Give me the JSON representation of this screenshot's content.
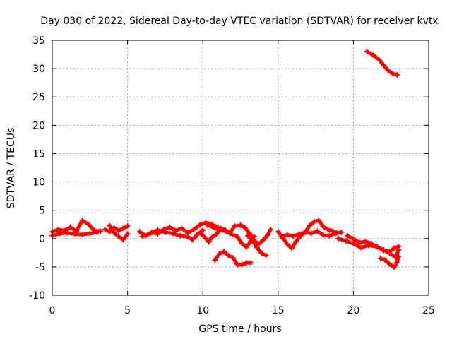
{
  "chart_data": {
    "type": "scatter",
    "title": "Day 030 of 2022, Sidereal Day-to-day VTEC variation (SDTVAR) for receiver kvtx",
    "xlabel": "GPS time / hours",
    "ylabel": "SDTVAR / TECUs",
    "xlim": [
      0,
      25
    ],
    "ylim": [
      -10,
      35
    ],
    "xticks": [
      "0",
      "5",
      "10",
      "15",
      "20",
      "25"
    ],
    "yticks": [
      "-10",
      "-5",
      "0",
      "5",
      "10",
      "15",
      "20",
      "25",
      "30",
      "35"
    ],
    "grid": true,
    "color": "#ff0000",
    "series": [
      {
        "name": "s1",
        "points": [
          [
            0.0,
            1.2
          ],
          [
            0.4,
            1.6
          ],
          [
            0.8,
            1.4
          ],
          [
            1.2,
            2.0
          ],
          [
            1.6,
            1.3
          ],
          [
            2.0,
            3.2
          ],
          [
            2.4,
            2.5
          ],
          [
            2.8,
            1.4
          ],
          [
            3.2,
            1.3
          ]
        ]
      },
      {
        "name": "s2",
        "points": [
          [
            0.0,
            0.5
          ],
          [
            0.5,
            0.9
          ],
          [
            1.0,
            1.0
          ],
          [
            1.5,
            0.8
          ],
          [
            2.0,
            0.7
          ],
          [
            2.5,
            0.9
          ],
          [
            3.0,
            1.1
          ]
        ]
      },
      {
        "name": "s3",
        "points": [
          [
            3.5,
            1.6
          ],
          [
            3.8,
            1.2
          ],
          [
            4.1,
            1.9
          ],
          [
            4.4,
            1.4
          ],
          [
            4.7,
            1.8
          ],
          [
            5.0,
            2.2
          ]
        ]
      },
      {
        "name": "s4",
        "points": [
          [
            3.8,
            2.3
          ],
          [
            4.1,
            1.0
          ],
          [
            4.4,
            0.4
          ],
          [
            4.7,
            -0.2
          ],
          [
            5.0,
            0.8
          ]
        ]
      },
      {
        "name": "s5",
        "points": [
          [
            5.8,
            1.2
          ],
          [
            6.2,
            0.5
          ],
          [
            6.6,
            1.1
          ],
          [
            7.0,
            0.8
          ],
          [
            7.4,
            1.6
          ],
          [
            7.8,
            2.0
          ],
          [
            8.2,
            1.4
          ],
          [
            8.6,
            1.8
          ],
          [
            9.0,
            1.0
          ],
          [
            9.4,
            1.6
          ],
          [
            9.8,
            2.4
          ],
          [
            10.2,
            2.8
          ],
          [
            10.6,
            2.5
          ],
          [
            11.0,
            2.0
          ]
        ]
      },
      {
        "name": "s6",
        "points": [
          [
            6.0,
            0.4
          ],
          [
            6.5,
            0.9
          ],
          [
            7.0,
            1.5
          ],
          [
            7.5,
            1.1
          ],
          [
            8.0,
            0.9
          ],
          [
            8.5,
            0.5
          ],
          [
            9.0,
            0.3
          ],
          [
            9.3,
            -0.2
          ],
          [
            9.6,
            0.6
          ],
          [
            10.0,
            1.5
          ]
        ]
      },
      {
        "name": "s7",
        "points": [
          [
            10.3,
            2.4
          ],
          [
            10.8,
            1.8
          ],
          [
            11.3,
            1.5
          ],
          [
            11.8,
            0.9
          ],
          [
            12.3,
            0.3
          ],
          [
            12.6,
            -0.9
          ],
          [
            12.9,
            -1.5
          ],
          [
            13.2,
            -0.4
          ],
          [
            13.4,
            0.4
          ]
        ]
      },
      {
        "name": "s8",
        "points": [
          [
            9.9,
            0.8
          ],
          [
            10.2,
            0.0
          ],
          [
            10.4,
            -0.6
          ],
          [
            10.6,
            0.2
          ],
          [
            10.9,
            0.8
          ],
          [
            11.2,
            1.8
          ],
          [
            11.5,
            1.5
          ],
          [
            11.8,
            1.0
          ],
          [
            12.1,
            2.2
          ],
          [
            12.5,
            2.3
          ]
        ]
      },
      {
        "name": "s9",
        "points": [
          [
            10.8,
            -3.8
          ],
          [
            11.1,
            -2.7
          ],
          [
            11.4,
            -2.3
          ],
          [
            11.7,
            -3.0
          ],
          [
            12.0,
            -3.4
          ],
          [
            12.3,
            -4.6
          ],
          [
            12.6,
            -4.6
          ],
          [
            12.9,
            -4.3
          ],
          [
            13.2,
            -4.3
          ]
        ]
      },
      {
        "name": "s10",
        "points": [
          [
            12.5,
            2.4
          ],
          [
            12.8,
            1.9
          ],
          [
            13.1,
            0.9
          ],
          [
            13.4,
            -0.3
          ],
          [
            13.7,
            -1.0
          ],
          [
            14.0,
            -0.3
          ],
          [
            14.3,
            0.6
          ],
          [
            14.5,
            1.6
          ]
        ]
      },
      {
        "name": "s11",
        "points": [
          [
            13.0,
            0.5
          ],
          [
            13.3,
            -0.4
          ],
          [
            13.6,
            -1.6
          ],
          [
            13.9,
            -2.6
          ],
          [
            14.2,
            -3.0
          ]
        ]
      },
      {
        "name": "s12",
        "points": [
          [
            15.0,
            1.2
          ],
          [
            15.3,
            0.2
          ],
          [
            15.6,
            -1.0
          ],
          [
            15.9,
            -1.7
          ],
          [
            16.2,
            -0.5
          ],
          [
            16.5,
            0.5
          ],
          [
            16.8,
            1.2
          ],
          [
            17.1,
            2.3
          ],
          [
            17.4,
            3.0
          ],
          [
            17.7,
            3.2
          ],
          [
            18.0,
            2.1
          ],
          [
            18.3,
            1.6
          ],
          [
            18.6,
            1.3
          ],
          [
            18.9,
            1.0
          ]
        ]
      },
      {
        "name": "s13",
        "points": [
          [
            15.2,
            0.3
          ],
          [
            15.6,
            0.7
          ],
          [
            16.0,
            0.4
          ],
          [
            16.4,
            0.8
          ],
          [
            16.8,
            1.1
          ],
          [
            17.2,
            0.9
          ],
          [
            17.6,
            1.3
          ],
          [
            18.0,
            0.6
          ],
          [
            18.4,
            0.5
          ],
          [
            18.8,
            0.9
          ],
          [
            19.2,
            1.1
          ]
        ]
      },
      {
        "name": "s14",
        "points": [
          [
            19.0,
            0.0
          ],
          [
            19.5,
            -0.4
          ],
          [
            20.0,
            -0.9
          ],
          [
            20.5,
            -1.6
          ],
          [
            21.0,
            -1.2
          ],
          [
            21.5,
            -1.4
          ],
          [
            22.0,
            -2.0
          ],
          [
            22.4,
            -2.6
          ],
          [
            22.8,
            -3.3
          ],
          [
            23.0,
            -2.0
          ]
        ]
      },
      {
        "name": "s15",
        "points": [
          [
            19.6,
            0.5
          ],
          [
            20.0,
            -0.1
          ],
          [
            20.4,
            -0.7
          ],
          [
            20.8,
            -0.5
          ],
          [
            21.2,
            -0.9
          ],
          [
            21.6,
            -1.5
          ],
          [
            22.0,
            -2.1
          ],
          [
            22.4,
            -2.3
          ],
          [
            22.7,
            -1.7
          ],
          [
            23.0,
            -1.4
          ]
        ]
      },
      {
        "name": "s16",
        "points": [
          [
            21.8,
            -3.5
          ],
          [
            22.1,
            -3.8
          ],
          [
            22.4,
            -4.5
          ],
          [
            22.7,
            -5.1
          ],
          [
            22.9,
            -4.2
          ],
          [
            23.0,
            -3.2
          ]
        ]
      },
      {
        "name": "s17",
        "points": [
          [
            20.9,
            33.0
          ],
          [
            21.3,
            32.4
          ],
          [
            21.7,
            31.6
          ],
          [
            22.0,
            30.6
          ],
          [
            22.3,
            29.7
          ],
          [
            22.6,
            29.1
          ],
          [
            22.9,
            28.9
          ]
        ]
      }
    ]
  }
}
